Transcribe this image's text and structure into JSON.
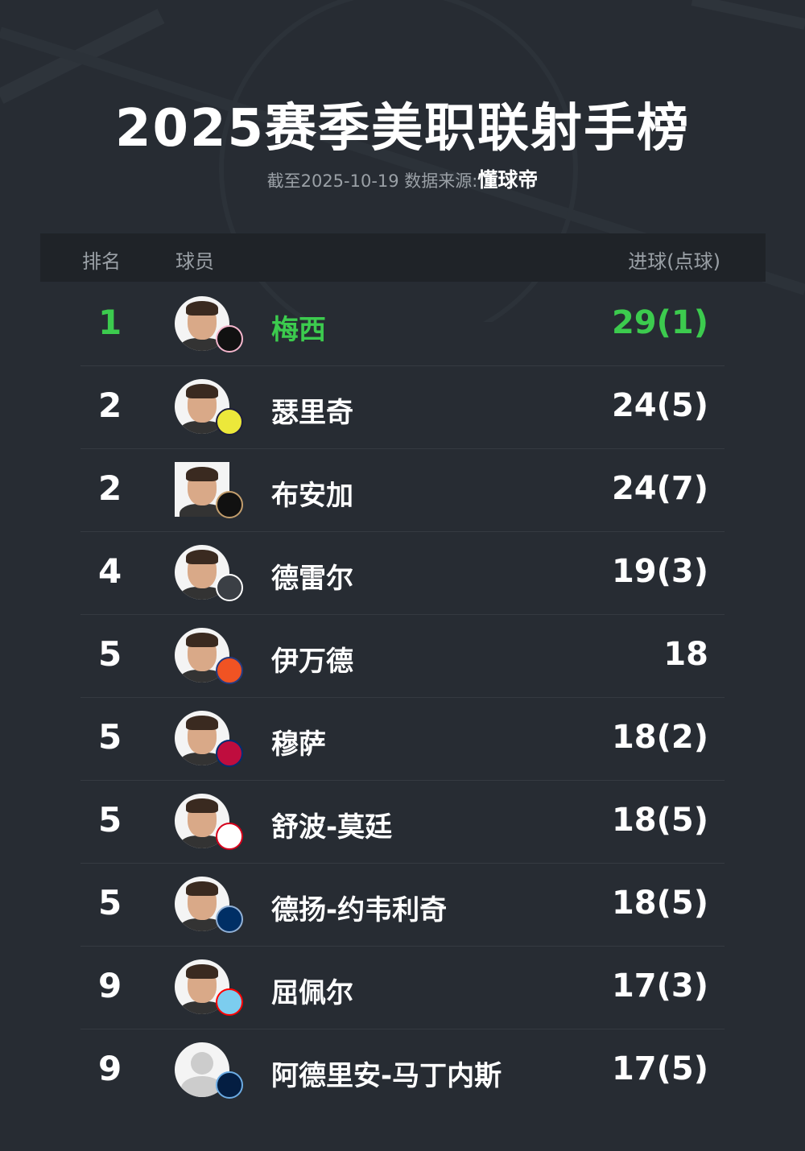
{
  "header": {
    "title": "2025赛季美职联射手榜",
    "subtitle_prefix": "截至2025-10-19 数据来源:",
    "source": "懂球帝"
  },
  "table": {
    "columns": [
      "排名",
      "球员",
      "进球(点球)"
    ]
  },
  "colors": {
    "accent": "#3ccb4e",
    "background": "#272c33",
    "header_bg": "#1f2328"
  },
  "rows": [
    {
      "rank": "1",
      "name": "梅西",
      "goals": "29(1)",
      "badge_color": "#111111",
      "badge_ring": "#f5b6cd"
    },
    {
      "rank": "2",
      "name": "瑟里奇",
      "goals": "24(5)",
      "badge_color": "#ece83a",
      "badge_ring": "#1f1f3a"
    },
    {
      "rank": "2",
      "name": "布安加",
      "goals": "24(7)",
      "badge_color": "#111111",
      "badge_ring": "#c39e6d"
    },
    {
      "rank": "4",
      "name": "德雷尔",
      "goals": "19(3)",
      "badge_color": "#3b3f45",
      "badge_ring": "#ffffff"
    },
    {
      "rank": "5",
      "name": "伊万德",
      "goals": "18",
      "badge_color": "#f05323",
      "badge_ring": "#263b80"
    },
    {
      "rank": "5",
      "name": "穆萨",
      "goals": "18(2)",
      "badge_color": "#bf0d3e",
      "badge_ring": "#002d72"
    },
    {
      "rank": "5",
      "name": "舒波-莫廷",
      "goals": "18(5)",
      "badge_color": "#ffffff",
      "badge_ring": "#d6001c"
    },
    {
      "rank": "5",
      "name": "德扬-约韦利奇",
      "goals": "18(5)",
      "badge_color": "#002f65",
      "badge_ring": "#91b0d5"
    },
    {
      "rank": "9",
      "name": "屈佩尔",
      "goals": "17(3)",
      "badge_color": "#7ccdef",
      "badge_ring": "#ff0000"
    },
    {
      "rank": "9",
      "name": "阿德里安-马丁内斯",
      "goals": "17(5)",
      "badge_color": "#041e42",
      "badge_ring": "#6cace4"
    }
  ]
}
